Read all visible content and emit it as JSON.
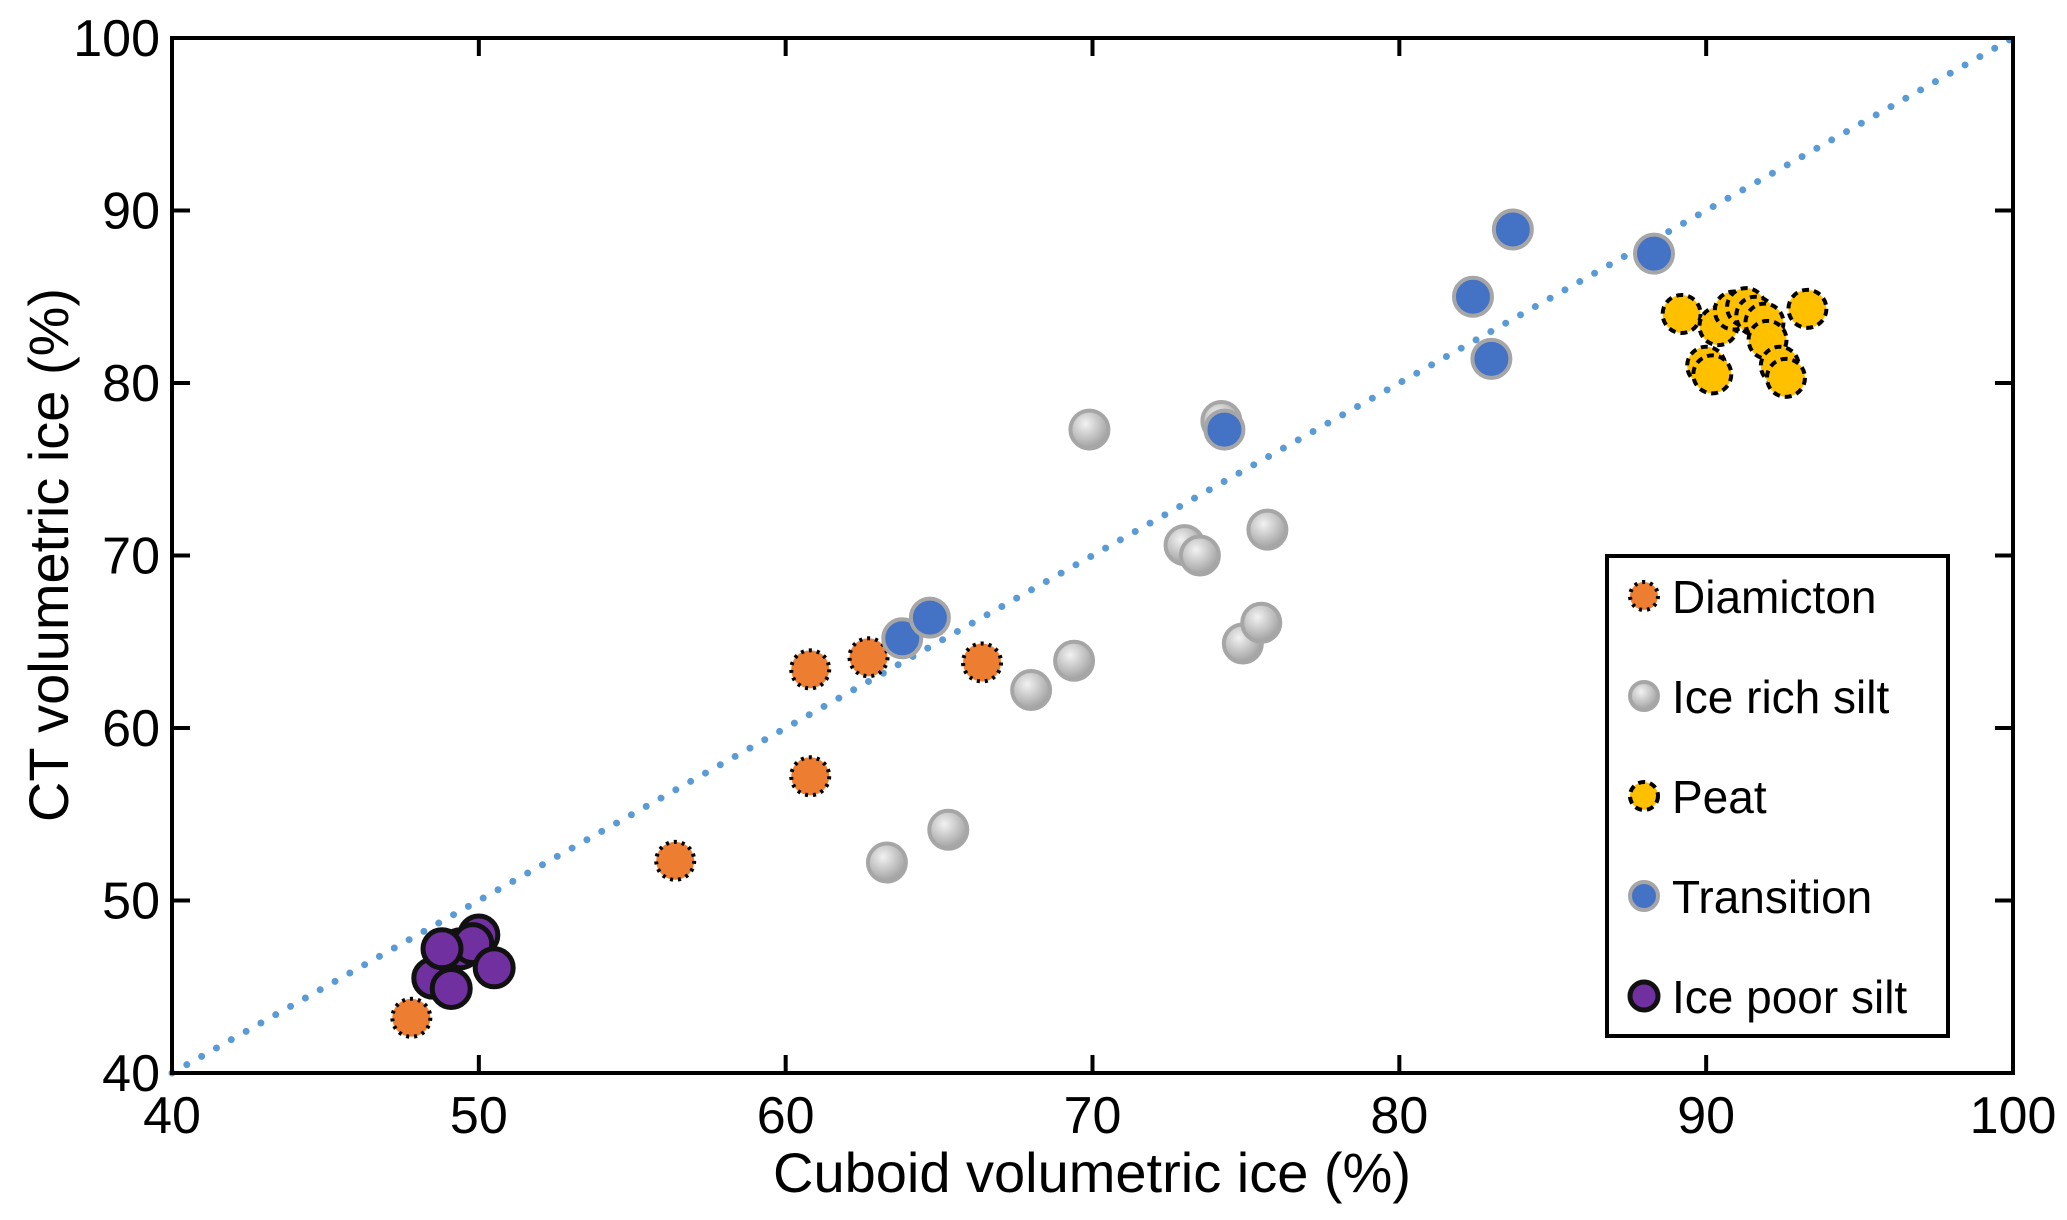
{
  "chart_data": {
    "type": "scatter",
    "title": "",
    "xlabel": "Cuboid volumetric ice (%)",
    "ylabel": "CT volumetric ice (%)",
    "xlim": [
      40,
      100
    ],
    "ylim": [
      40,
      100
    ],
    "xticks": [
      "40",
      "50",
      "60",
      "70",
      "80",
      "90",
      "100"
    ],
    "yticks": [
      "40",
      "50",
      "60",
      "70",
      "80",
      "90",
      "100"
    ],
    "grid": false,
    "legend_position": "bottom-right",
    "reference_line": {
      "name": "1:1 line",
      "color": "#5b9bd5",
      "style": "dotted",
      "from": [
        40,
        40
      ],
      "to": [
        100,
        100
      ]
    },
    "series": [
      {
        "name": "Diamicton",
        "color": "#ed7d31",
        "edge": "dotted-black",
        "points": [
          [
            47.8,
            43.2
          ],
          [
            56.4,
            52.3
          ],
          [
            60.8,
            57.2
          ],
          [
            60.8,
            63.4
          ],
          [
            62.7,
            64.1
          ],
          [
            66.4,
            63.8
          ]
        ]
      },
      {
        "name": "Ice rich silt",
        "color": "#b4b4b4",
        "edge": "grey",
        "points": [
          [
            63.3,
            52.2
          ],
          [
            65.3,
            54.1
          ],
          [
            68.0,
            62.2
          ],
          [
            69.4,
            63.9
          ],
          [
            69.9,
            77.3
          ],
          [
            73.0,
            70.6
          ],
          [
            73.5,
            70.0
          ],
          [
            74.2,
            77.8
          ],
          [
            74.9,
            64.9
          ],
          [
            75.5,
            66.1
          ],
          [
            75.7,
            71.5
          ]
        ]
      },
      {
        "name": "Peat",
        "color": "#ffc000",
        "edge": "dashed-black",
        "points": [
          [
            89.2,
            84.0
          ],
          [
            90.0,
            81.0
          ],
          [
            90.2,
            80.5
          ],
          [
            90.4,
            83.3
          ],
          [
            90.9,
            84.2
          ],
          [
            91.3,
            84.4
          ],
          [
            91.6,
            83.9
          ],
          [
            91.9,
            83.5
          ],
          [
            92.0,
            82.5
          ],
          [
            92.4,
            81.0
          ],
          [
            92.6,
            80.3
          ],
          [
            93.3,
            84.3
          ]
        ]
      },
      {
        "name": "Transition",
        "color": "#4472c4",
        "edge": "grey",
        "points": [
          [
            63.8,
            65.2
          ],
          [
            64.7,
            66.4
          ],
          [
            74.3,
            77.3
          ],
          [
            82.4,
            85.0
          ],
          [
            83.0,
            81.4
          ],
          [
            83.7,
            88.9
          ],
          [
            88.3,
            87.5
          ]
        ]
      },
      {
        "name": "Ice poor silt",
        "color": "#7030a0",
        "edge": "solid-black",
        "points": [
          [
            50.0,
            48.0
          ],
          [
            48.5,
            45.5
          ],
          [
            49.1,
            44.9
          ],
          [
            49.4,
            47.2
          ],
          [
            49.8,
            47.5
          ],
          [
            48.8,
            47.2
          ],
          [
            50.5,
            46.1
          ]
        ]
      }
    ]
  }
}
